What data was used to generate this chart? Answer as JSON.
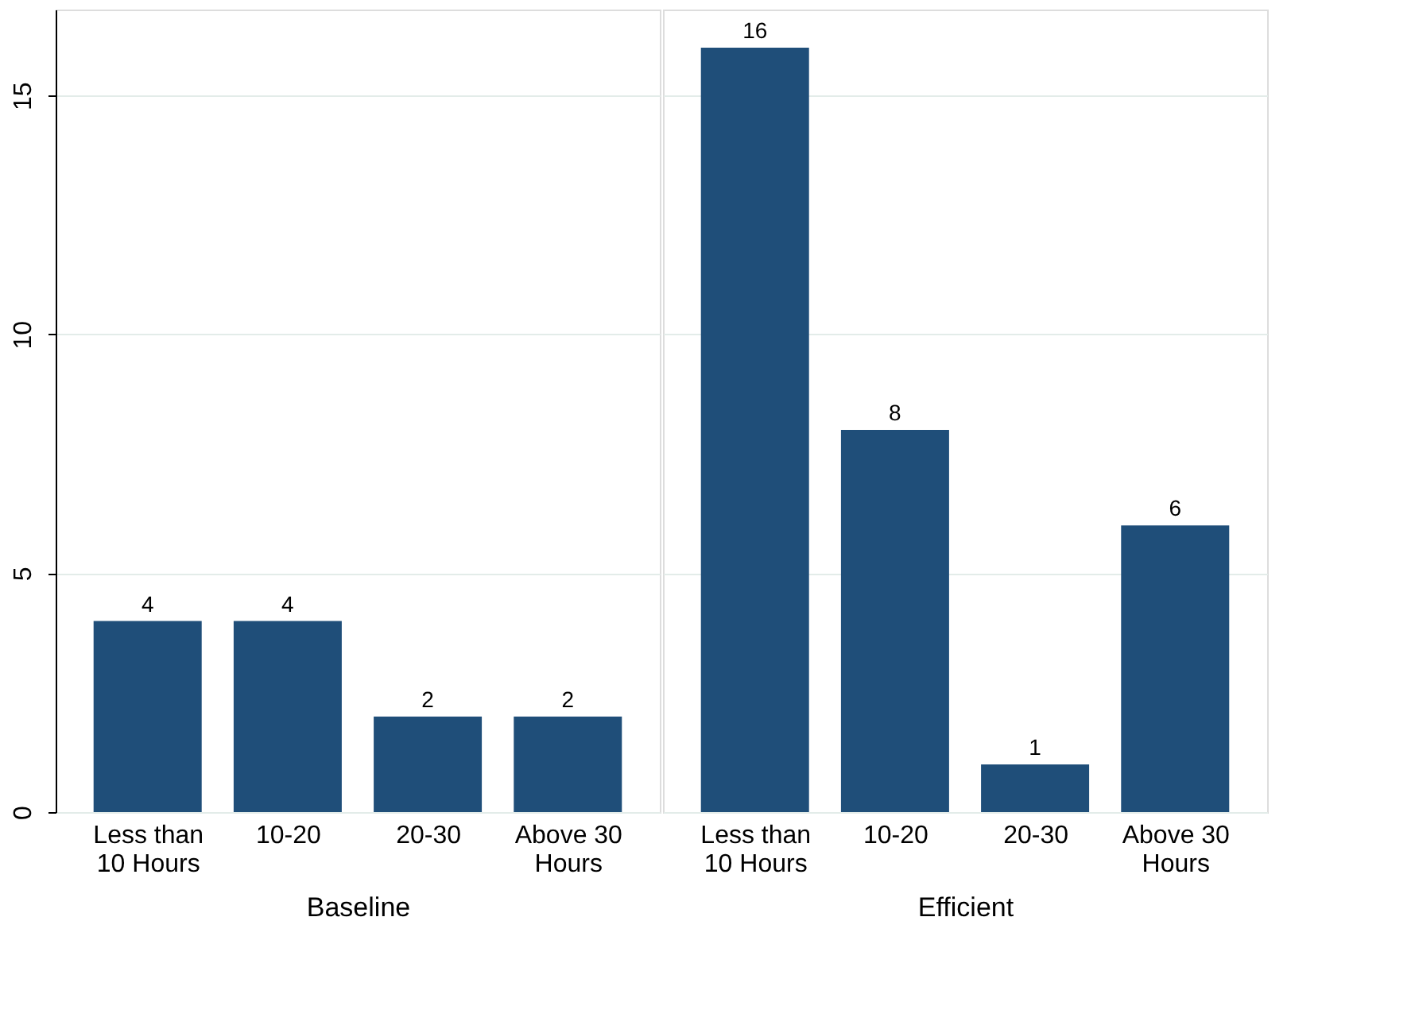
{
  "chart_data": [
    {
      "type": "bar",
      "xlabel": "Baseline",
      "categories": [
        "Less than 10 Hours",
        "10-20",
        "20-30",
        "Above 30 Hours"
      ],
      "values": [
        4,
        4,
        2,
        2
      ],
      "color": "#1f4e79",
      "ylim": [
        0,
        16.8
      ],
      "yticks": [
        0,
        5,
        10,
        15
      ],
      "grid": "y",
      "data_labels": true
    },
    {
      "type": "bar",
      "xlabel": "Efficient",
      "categories": [
        "Less than 10 Hours",
        "10-20",
        "20-30",
        "Above 30 Hours"
      ],
      "values": [
        16,
        8,
        1,
        6
      ],
      "color": "#1f4e79",
      "ylim": [
        0,
        16.8
      ],
      "yticks": [
        0,
        5,
        10,
        15
      ],
      "grid": "y",
      "data_labels": true,
      "tick_labels": "x"
    }
  ]
}
